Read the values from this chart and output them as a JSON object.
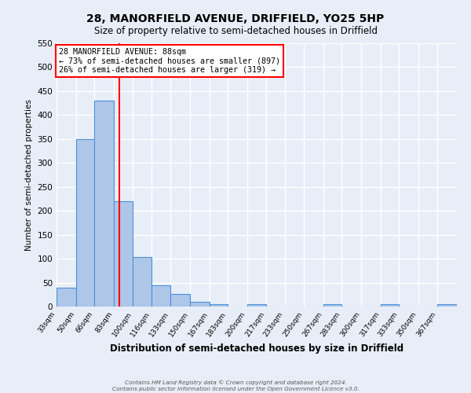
{
  "title": "28, MANORFIELD AVENUE, DRIFFIELD, YO25 5HP",
  "subtitle": "Size of property relative to semi-detached houses in Driffield",
  "xlabel": "Distribution of semi-detached houses by size in Driffield",
  "ylabel": "Number of semi-detached properties",
  "bin_labels": [
    "33sqm",
    "50sqm",
    "66sqm",
    "83sqm",
    "100sqm",
    "116sqm",
    "133sqm",
    "150sqm",
    "167sqm",
    "183sqm",
    "200sqm",
    "217sqm",
    "233sqm",
    "250sqm",
    "267sqm",
    "283sqm",
    "300sqm",
    "317sqm",
    "333sqm",
    "350sqm",
    "367sqm"
  ],
  "bin_edges": [
    33,
    50,
    66,
    83,
    100,
    116,
    133,
    150,
    167,
    183,
    200,
    217,
    233,
    250,
    267,
    283,
    300,
    317,
    333,
    350,
    367,
    384
  ],
  "values": [
    40,
    350,
    430,
    220,
    103,
    44,
    26,
    10,
    5,
    0,
    5,
    0,
    0,
    0,
    5,
    0,
    0,
    5,
    0,
    0,
    5
  ],
  "bar_color": "#aec6e8",
  "bar_edge_color": "#4a90d9",
  "property_value": 88,
  "vline_color": "red",
  "annotation_title": "28 MANORFIELD AVENUE: 88sqm",
  "annotation_line1": "← 73% of semi-detached houses are smaller (897)",
  "annotation_line2": "26% of semi-detached houses are larger (319) →",
  "annotation_box_color": "white",
  "annotation_box_edge_color": "red",
  "ylim": [
    0,
    550
  ],
  "yticks": [
    0,
    50,
    100,
    150,
    200,
    250,
    300,
    350,
    400,
    450,
    500,
    550
  ],
  "background_color": "#e8eef8",
  "footer_line1": "Contains HM Land Registry data © Crown copyright and database right 2024.",
  "footer_line2": "Contains public sector information licensed under the Open Government Licence v3.0."
}
